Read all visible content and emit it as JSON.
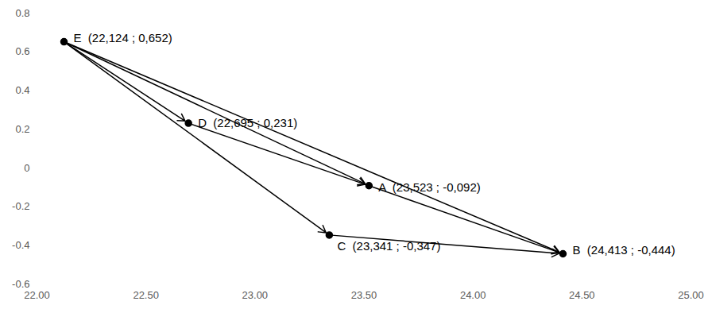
{
  "chart_data": {
    "type": "scatter",
    "x": [
      22.124,
      22.695,
      23.523,
      23.341,
      24.413
    ],
    "values": [
      0.652,
      0.231,
      -0.092,
      -0.347,
      -0.444
    ],
    "point_labels": [
      "E  (22,124 ; 0,652)",
      "D  (22,695 ; 0,231)",
      "A  (23,523 ; -0,092)",
      "C  (23,341 ; -0,347)",
      "B  (24,413 ; -0,444)"
    ],
    "arrows": [
      {
        "from": 0,
        "to": 1
      },
      {
        "from": 0,
        "to": 3
      },
      {
        "from": 0,
        "to": 2
      },
      {
        "from": 0,
        "to": 4
      },
      {
        "from": 1,
        "to": 2
      },
      {
        "from": 2,
        "to": 4
      },
      {
        "from": 3,
        "to": 4
      }
    ],
    "color": "#000000",
    "marker": "circle",
    "xlim": [
      22,
      25
    ],
    "xticks": [
      {
        "value": 22,
        "label": "22.00"
      },
      {
        "value": 22.5,
        "label": "22.50"
      },
      {
        "value": 23,
        "label": "23.00"
      },
      {
        "value": 23.5,
        "label": "23.50"
      },
      {
        "value": 24,
        "label": "24.00"
      },
      {
        "value": 24.5,
        "label": "24.50"
      },
      {
        "value": 25,
        "label": "25.00"
      }
    ],
    "ylim": [
      -0.6,
      0.8
    ],
    "yticks": [
      -0.6,
      -0.4,
      -0.2,
      0,
      0.2,
      0.4,
      0.6,
      0.8
    ],
    "grid": false
  }
}
